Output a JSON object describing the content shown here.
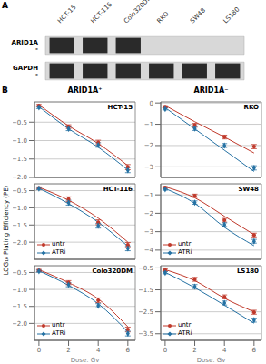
{
  "chart_data": [
    {
      "type": "blot",
      "panel_label": "A",
      "color": "#111111",
      "categories": [
        "HCT-15",
        "HCT-116",
        "Colo320DM",
        "RKO",
        "SW48",
        "LS180"
      ],
      "rows": [
        {
          "name": "ARID1A -",
          "bands": [
            true,
            true,
            true,
            false,
            false,
            false
          ]
        },
        {
          "name": "GAPDH -",
          "bands": [
            true,
            true,
            true,
            true,
            true,
            true
          ]
        }
      ]
    },
    {
      "type": "line",
      "annotation": "HCT-15",
      "title": "ARID1A⁺",
      "panel_label": "B",
      "x": [
        0,
        2,
        4,
        6
      ],
      "xlim": [
        -0.3,
        6.5
      ],
      "xticks": [
        0,
        2,
        4,
        6
      ],
      "ylim": [
        -2.0,
        0.05
      ],
      "yticks": [
        {
          "value": -2.0,
          "label": "−2.0"
        },
        {
          "value": -1.5,
          "label": "−1.5"
        },
        {
          "value": -1.0,
          "label": "−1.0"
        },
        {
          "value": -0.5,
          "label": "−0.5"
        }
      ],
      "grid": true,
      "tick_labels": "y",
      "series": [
        {
          "name": "untr",
          "color": "#c0392b",
          "marker": "circle",
          "values": [
            -0.05,
            -0.62,
            -1.05,
            -1.72
          ],
          "error": [
            0.03,
            0.05,
            0.06,
            0.07
          ],
          "fit": [
            -0.03,
            -0.6,
            -1.08,
            -1.68
          ]
        },
        {
          "name": "ATRi",
          "color": "#2471a3",
          "marker": "diamond",
          "values": [
            -0.1,
            -0.68,
            -1.12,
            -1.8
          ],
          "error": [
            0.03,
            0.05,
            0.06,
            0.07
          ],
          "fit": [
            -0.08,
            -0.68,
            -1.18,
            -1.8
          ]
        }
      ]
    },
    {
      "type": "line",
      "annotation": "HCT-116",
      "y_label": "LOG₁₀ Plating Efficiency (PE)",
      "x": [
        0,
        2,
        4,
        6
      ],
      "xlim": [
        -0.3,
        6.5
      ],
      "xticks": [
        0,
        2,
        4,
        6
      ],
      "ylim": [
        -2.5,
        -0.3
      ],
      "yticks": [
        {
          "value": -2.0,
          "label": "−2.0"
        },
        {
          "value": -1.5,
          "label": "−1.5"
        },
        {
          "value": -1.0,
          "label": "−1.0"
        },
        {
          "value": -0.5,
          "label": "−0.5"
        }
      ],
      "grid": true,
      "tick_labels": "y",
      "legend": "lower left",
      "series": [
        {
          "name": "untr",
          "color": "#c0392b",
          "marker": "circle",
          "values": [
            -0.42,
            -0.75,
            -1.42,
            -2.08
          ],
          "error": [
            0.03,
            0.07,
            0.07,
            0.07
          ],
          "fit": [
            -0.4,
            -0.78,
            -1.3,
            -2.0
          ]
        },
        {
          "name": "ATRi",
          "color": "#2471a3",
          "marker": "diamond",
          "values": [
            -0.44,
            -0.85,
            -1.52,
            -2.18
          ],
          "error": [
            0.03,
            0.07,
            0.07,
            0.07
          ],
          "fit": [
            -0.43,
            -0.88,
            -1.42,
            -2.12
          ]
        }
      ]
    },
    {
      "type": "line",
      "annotation": "Colo320DM",
      "x_label": "Dose, Gy",
      "x": [
        0,
        2,
        4,
        6
      ],
      "xlim": [
        -0.3,
        6.5
      ],
      "xticks": [
        0,
        2,
        4,
        6
      ],
      "ylim": [
        -2.5,
        -0.3
      ],
      "yticks": [
        {
          "value": -2.0,
          "label": "−2.0"
        },
        {
          "value": -1.5,
          "label": "−1.5"
        },
        {
          "value": -1.0,
          "label": "−1.0"
        },
        {
          "value": -0.5,
          "label": "−0.5"
        }
      ],
      "grid": true,
      "legend": "lower left",
      "series": [
        {
          "name": "untr",
          "color": "#c0392b",
          "marker": "circle",
          "values": [
            -0.44,
            -0.8,
            -1.32,
            -2.18
          ],
          "error": [
            0.03,
            0.06,
            0.07,
            0.07
          ],
          "fit": [
            -0.42,
            -0.8,
            -1.28,
            -2.1
          ]
        },
        {
          "name": "ATRi",
          "color": "#2471a3",
          "marker": "diamond",
          "values": [
            -0.46,
            -0.86,
            -1.48,
            -2.3
          ],
          "error": [
            0.03,
            0.06,
            0.06,
            0.07
          ],
          "fit": [
            -0.45,
            -0.88,
            -1.42,
            -2.25
          ]
        }
      ]
    },
    {
      "type": "line",
      "annotation": "RKO",
      "title": "ARID1A⁻",
      "x": [
        0,
        2,
        4,
        6
      ],
      "xlim": [
        -0.3,
        6.5
      ],
      "xticks": [
        0,
        2,
        4,
        6
      ],
      "ylim": [
        -3.5,
        0.05
      ],
      "yticks": [
        {
          "value": -3.0,
          "label": "−3"
        },
        {
          "value": -2.0,
          "label": "−2"
        },
        {
          "value": -1.0,
          "label": "−1"
        },
        0
      ],
      "grid": true,
      "tick_labels": "y",
      "series": [
        {
          "name": "untr",
          "color": "#c0392b",
          "marker": "circle",
          "values": [
            -0.18,
            -1.05,
            -1.6,
            -2.05
          ],
          "error": [
            0.05,
            0.09,
            0.09,
            0.1
          ],
          "fit": [
            -0.12,
            -0.88,
            -1.6,
            -2.35
          ]
        },
        {
          "name": "ATRi",
          "color": "#2471a3",
          "marker": "diamond",
          "values": [
            -0.28,
            -1.2,
            -2.0,
            -3.05
          ],
          "error": [
            0.05,
            0.09,
            0.09,
            0.1
          ],
          "fit": [
            -0.22,
            -1.22,
            -2.22,
            -3.22
          ]
        }
      ]
    },
    {
      "type": "line",
      "annotation": "SW48",
      "x": [
        0,
        2,
        4,
        6
      ],
      "xlim": [
        -0.3,
        6.5
      ],
      "xticks": [
        0,
        2,
        4,
        6
      ],
      "ylim": [
        -4.5,
        -0.4
      ],
      "yticks": [
        {
          "value": -4.0,
          "label": "−4"
        },
        {
          "value": -3.0,
          "label": "−3"
        },
        {
          "value": -2.0,
          "label": "−2"
        },
        {
          "value": -1.0,
          "label": "−1"
        }
      ],
      "grid": true,
      "tick_labels": "y",
      "legend": "lower left",
      "series": [
        {
          "name": "untr",
          "color": "#c0392b",
          "marker": "circle",
          "values": [
            -0.6,
            -1.05,
            -2.38,
            -3.18
          ],
          "error": [
            0.05,
            0.09,
            0.1,
            0.1
          ],
          "fit": [
            -0.56,
            -1.16,
            -2.16,
            -3.16
          ]
        },
        {
          "name": "ATRi",
          "color": "#2471a3",
          "marker": "diamond",
          "values": [
            -0.7,
            -1.42,
            -2.62,
            -3.52
          ],
          "error": [
            0.05,
            0.09,
            0.1,
            0.1
          ],
          "fit": [
            -0.66,
            -1.46,
            -2.76,
            -3.76
          ]
        }
      ]
    },
    {
      "type": "line",
      "annotation": "LS180",
      "x_label": "Dose, Gy",
      "x": [
        0,
        2,
        4,
        6
      ],
      "xlim": [
        -0.3,
        6.5
      ],
      "xticks": [
        0,
        2,
        4,
        6
      ],
      "ylim": [
        -3.8,
        -0.4
      ],
      "yticks": [
        {
          "value": -3.5,
          "label": "−3.5"
        },
        {
          "value": -2.5,
          "label": "−2.5"
        },
        {
          "value": -1.5,
          "label": "−1.5"
        },
        {
          "value": -0.5,
          "label": "−0.5"
        }
      ],
      "grid": true,
      "legend": "lower left",
      "series": [
        {
          "name": "untr",
          "color": "#c0392b",
          "marker": "circle",
          "values": [
            -0.6,
            -1.02,
            -1.82,
            -2.52
          ],
          "error": [
            0.05,
            0.09,
            0.09,
            0.09
          ],
          "fit": [
            -0.58,
            -1.08,
            -1.88,
            -2.5
          ]
        },
        {
          "name": "ATRi",
          "color": "#2471a3",
          "marker": "diamond",
          "values": [
            -0.72,
            -1.35,
            -2.1,
            -2.88
          ],
          "error": [
            0.05,
            0.09,
            0.09,
            0.09
          ],
          "fit": [
            -0.7,
            -1.4,
            -2.2,
            -3.02
          ]
        }
      ]
    }
  ]
}
